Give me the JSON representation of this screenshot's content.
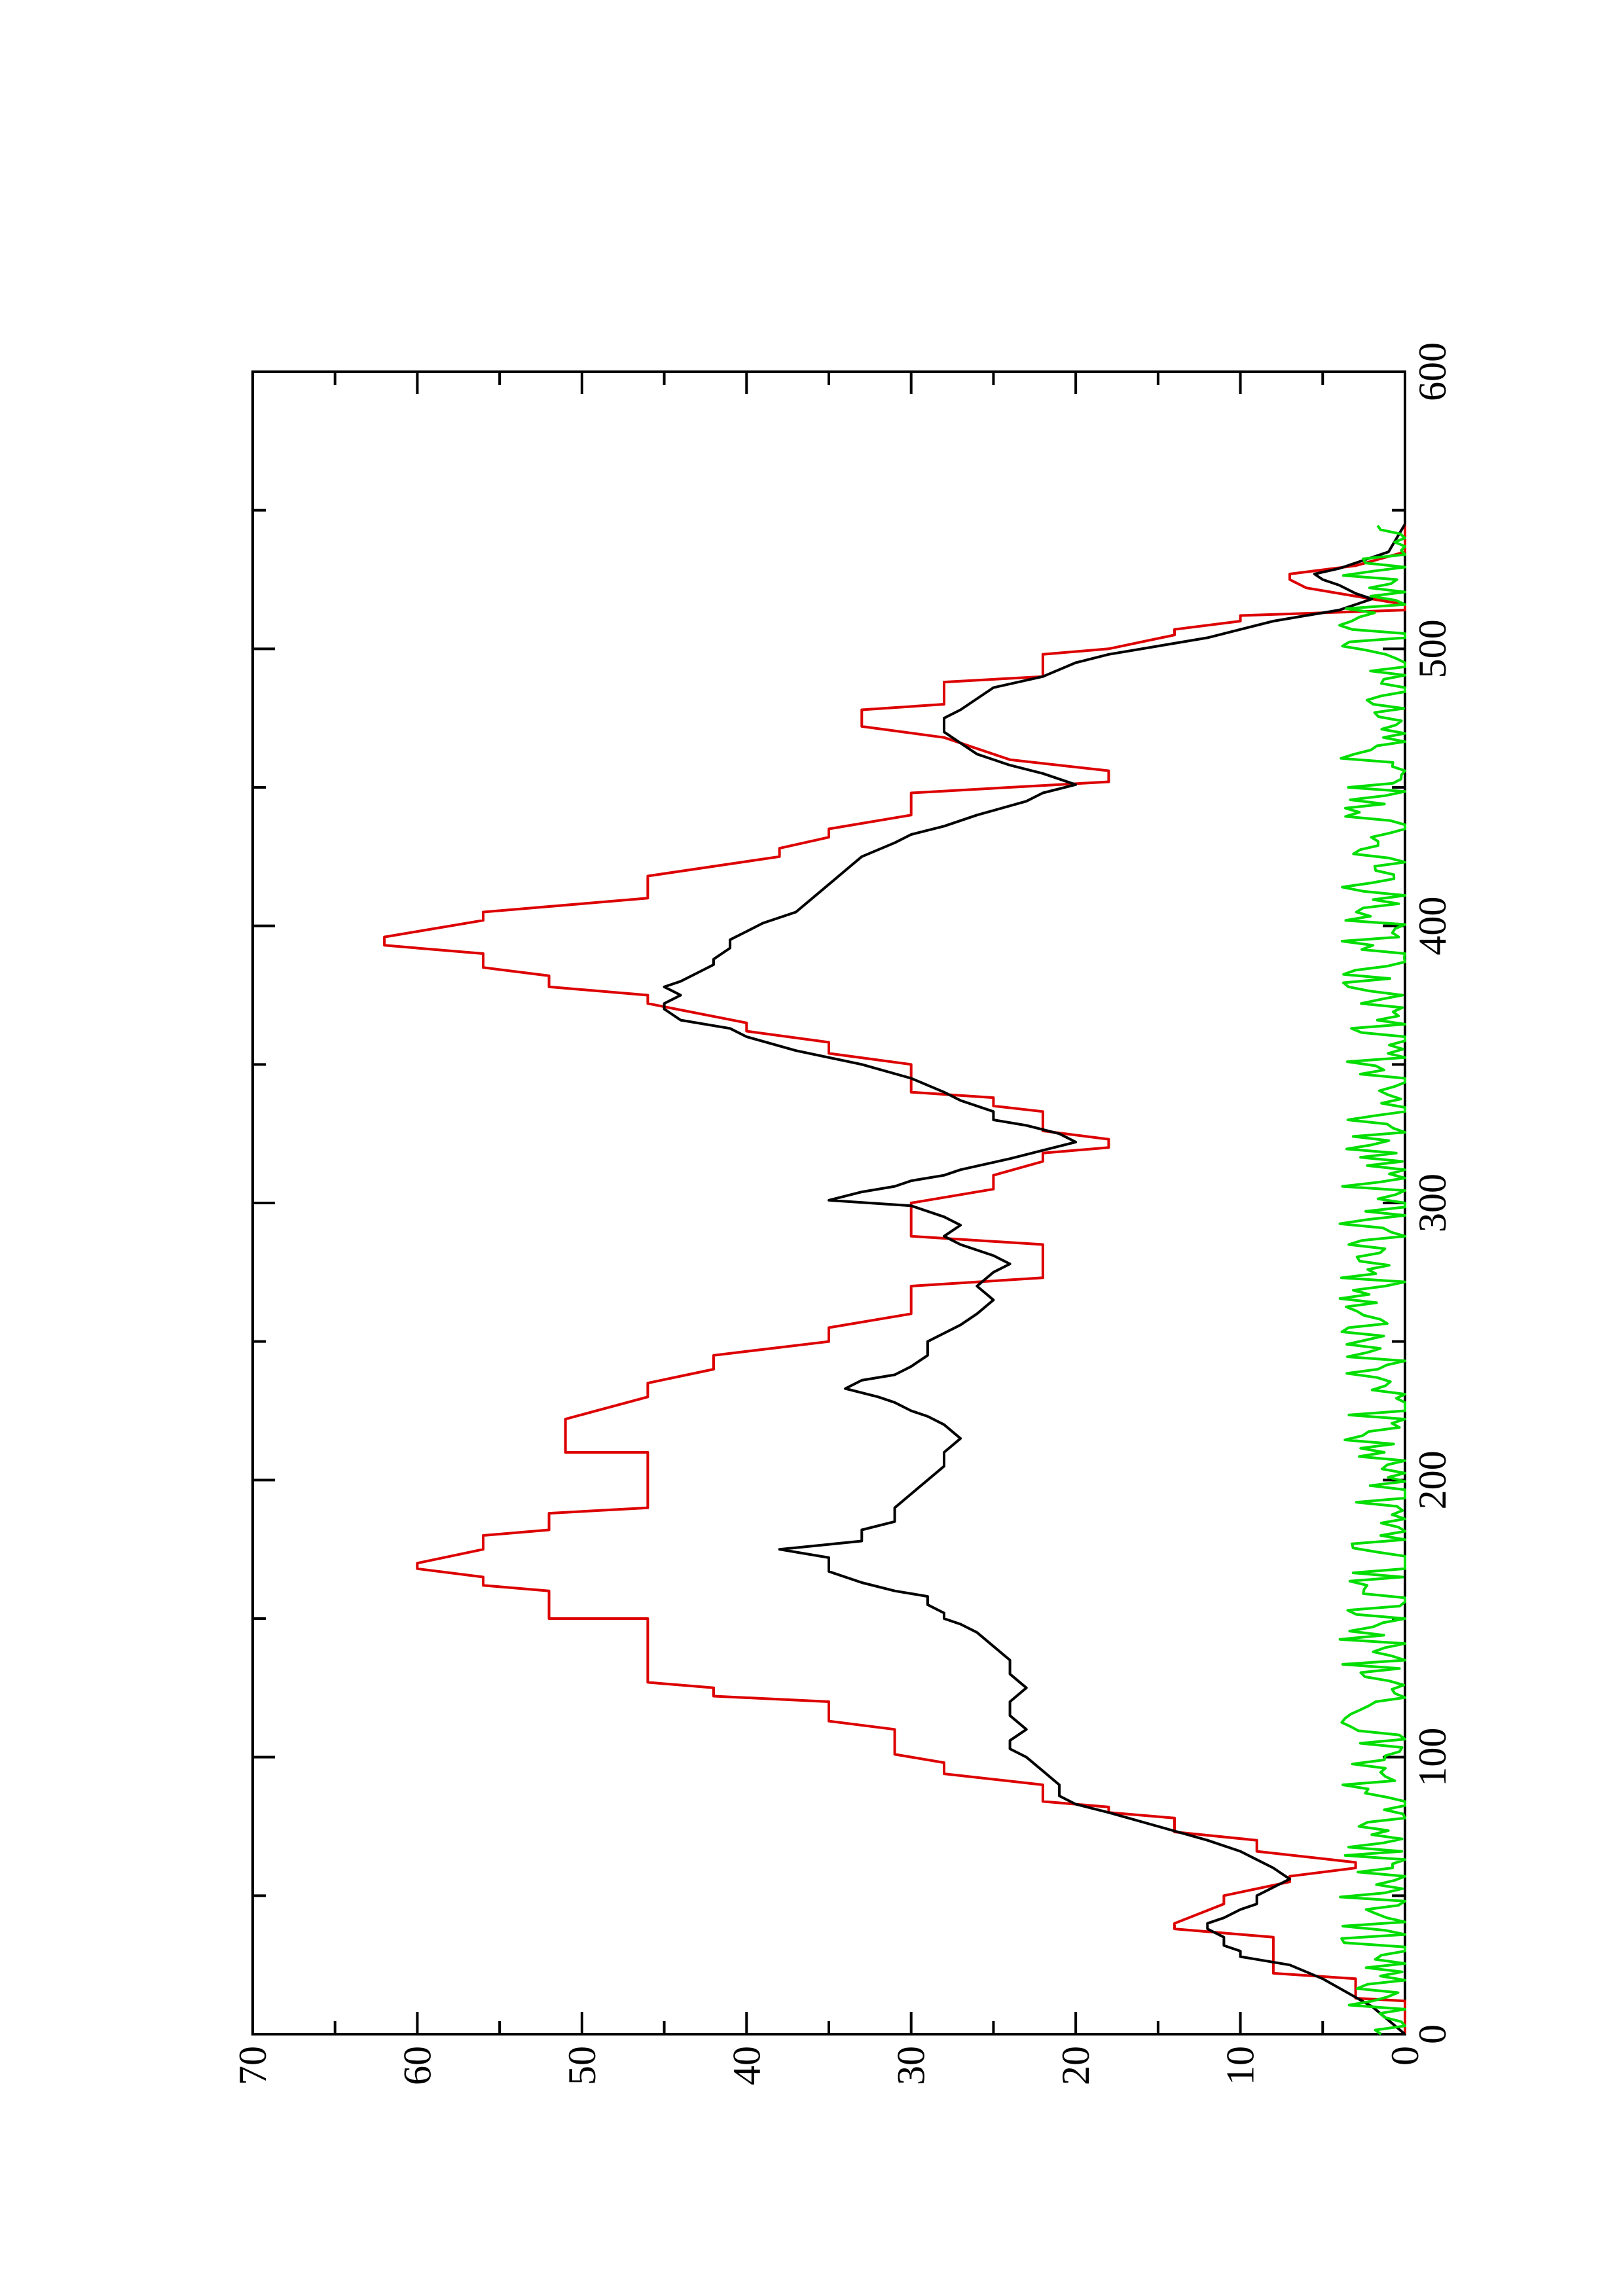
{
  "chart_data": {
    "type": "line",
    "title": "",
    "xlabel": "",
    "ylabel": "",
    "orientation": "rotated-90-counterclockwise",
    "xlim": [
      0,
      600
    ],
    "ylim": [
      0,
      70
    ],
    "grid": false,
    "legend": "none",
    "x_ticks": [
      0,
      100,
      200,
      300,
      400,
      500,
      600
    ],
    "y_ticks": [
      0,
      10,
      20,
      30,
      40,
      50,
      60,
      70
    ],
    "x_tick_labels": [
      "0",
      "100",
      "200",
      "300",
      "400",
      "500",
      "600"
    ],
    "y_tick_labels": [
      "0",
      "10",
      "20",
      "30",
      "40",
      "50",
      "60",
      "70"
    ],
    "series": [
      {
        "color": "#dd0000",
        "style": "step",
        "points": [
          [
            0,
            0
          ],
          [
            12,
            0
          ],
          [
            13,
            3
          ],
          [
            20,
            3
          ],
          [
            22,
            8
          ],
          [
            35,
            8
          ],
          [
            38,
            14
          ],
          [
            40,
            14
          ],
          [
            47,
            11
          ],
          [
            50,
            11
          ],
          [
            55,
            7
          ],
          [
            57,
            7
          ],
          [
            60,
            3
          ],
          [
            62,
            3
          ],
          [
            66,
            9
          ],
          [
            70,
            9
          ],
          [
            73,
            14
          ],
          [
            78,
            14
          ],
          [
            80,
            18
          ],
          [
            82,
            18
          ],
          [
            84,
            22
          ],
          [
            90,
            22
          ],
          [
            94,
            28
          ],
          [
            98,
            28
          ],
          [
            101,
            31
          ],
          [
            110,
            31
          ],
          [
            113,
            35
          ],
          [
            120,
            35
          ],
          [
            122,
            42
          ],
          [
            125,
            42
          ],
          [
            127,
            46
          ],
          [
            150,
            46
          ],
          [
            150,
            52
          ],
          [
            160,
            52
          ],
          [
            162,
            56
          ],
          [
            165,
            56
          ],
          [
            168,
            60
          ],
          [
            170,
            60
          ],
          [
            175,
            56
          ],
          [
            180,
            56
          ],
          [
            182,
            52
          ],
          [
            188,
            52
          ],
          [
            190,
            46
          ],
          [
            210,
            46
          ],
          [
            210,
            51
          ],
          [
            222,
            51
          ],
          [
            230,
            46
          ],
          [
            235,
            46
          ],
          [
            240,
            42
          ],
          [
            245,
            42
          ],
          [
            250,
            35
          ],
          [
            255,
            35
          ],
          [
            260,
            30
          ],
          [
            270,
            30
          ],
          [
            273,
            22
          ],
          [
            280,
            22
          ],
          [
            282,
            22
          ],
          [
            285,
            22
          ],
          [
            288,
            30
          ],
          [
            292,
            30
          ],
          [
            298,
            30
          ],
          [
            300,
            30
          ],
          [
            305,
            25
          ],
          [
            310,
            25
          ],
          [
            315,
            22
          ],
          [
            318,
            22
          ],
          [
            320,
            18
          ],
          [
            323,
            18
          ],
          [
            326,
            22
          ],
          [
            333,
            22
          ],
          [
            335,
            25
          ],
          [
            338,
            25
          ],
          [
            340,
            30
          ],
          [
            350,
            30
          ],
          [
            354,
            35
          ],
          [
            358,
            35
          ],
          [
            362,
            40
          ],
          [
            365,
            40
          ],
          [
            372,
            46
          ],
          [
            375,
            46
          ],
          [
            378,
            52
          ],
          [
            382,
            52
          ],
          [
            385,
            56
          ],
          [
            390,
            56
          ],
          [
            393,
            62
          ],
          [
            396,
            62
          ],
          [
            402,
            56
          ],
          [
            405,
            56
          ],
          [
            410,
            46
          ],
          [
            418,
            46
          ],
          [
            425,
            38
          ],
          [
            428,
            38
          ],
          [
            432,
            35
          ],
          [
            435,
            35
          ],
          [
            440,
            30
          ],
          [
            448,
            30
          ],
          [
            452,
            18
          ],
          [
            456,
            18
          ],
          [
            460,
            24
          ],
          [
            468,
            28
          ],
          [
            472,
            33
          ],
          [
            478,
            33
          ],
          [
            480,
            28
          ],
          [
            488,
            28
          ],
          [
            490,
            22
          ],
          [
            498,
            22
          ],
          [
            500,
            18
          ],
          [
            505,
            14
          ],
          [
            507,
            14
          ],
          [
            510,
            10
          ],
          [
            512,
            10
          ],
          [
            514,
            0
          ],
          [
            516,
            0
          ],
          [
            522,
            6
          ],
          [
            525,
            7
          ],
          [
            527,
            7
          ],
          [
            530,
            3
          ],
          [
            535,
            0
          ],
          [
            545,
            0
          ]
        ]
      },
      {
        "color": "#000000",
        "style": "line",
        "points": [
          [
            0,
            0
          ],
          [
            5,
            1
          ],
          [
            10,
            2
          ],
          [
            15,
            3.5
          ],
          [
            20,
            5
          ],
          [
            25,
            7
          ],
          [
            28,
            10
          ],
          [
            30,
            10
          ],
          [
            32,
            11
          ],
          [
            35,
            11
          ],
          [
            38,
            12
          ],
          [
            40,
            12
          ],
          [
            42,
            11
          ],
          [
            45,
            10
          ],
          [
            47,
            9
          ],
          [
            50,
            9
          ],
          [
            53,
            8
          ],
          [
            56,
            7
          ],
          [
            58,
            7.5
          ],
          [
            60,
            8
          ],
          [
            63,
            9
          ],
          [
            66,
            10
          ],
          [
            70,
            12
          ],
          [
            75,
            15
          ],
          [
            80,
            18
          ],
          [
            83,
            20
          ],
          [
            86,
            21
          ],
          [
            90,
            21
          ],
          [
            95,
            22
          ],
          [
            100,
            23
          ],
          [
            103,
            24
          ],
          [
            106,
            24
          ],
          [
            110,
            23
          ],
          [
            115,
            24
          ],
          [
            120,
            24
          ],
          [
            125,
            23
          ],
          [
            130,
            24
          ],
          [
            135,
            24
          ],
          [
            140,
            25
          ],
          [
            145,
            26
          ],
          [
            148,
            27
          ],
          [
            150,
            28
          ],
          [
            152,
            28
          ],
          [
            155,
            29
          ],
          [
            158,
            29
          ],
          [
            160,
            31
          ],
          [
            163,
            33
          ],
          [
            167,
            35
          ],
          [
            172,
            35
          ],
          [
            175,
            38
          ],
          [
            178,
            33
          ],
          [
            182,
            33
          ],
          [
            185,
            31
          ],
          [
            190,
            31
          ],
          [
            195,
            30
          ],
          [
            200,
            29
          ],
          [
            205,
            28
          ],
          [
            210,
            28
          ],
          [
            215,
            27
          ],
          [
            220,
            28
          ],
          [
            223,
            29
          ],
          [
            225,
            30
          ],
          [
            228,
            31
          ],
          [
            230,
            32
          ],
          [
            233,
            34
          ],
          [
            236,
            33
          ],
          [
            238,
            31
          ],
          [
            241,
            30
          ],
          [
            245,
            29
          ],
          [
            250,
            29
          ],
          [
            253,
            28
          ],
          [
            256,
            27
          ],
          [
            260,
            26
          ],
          [
            265,
            25
          ],
          [
            270,
            26
          ],
          [
            275,
            25
          ],
          [
            278,
            24
          ],
          [
            281,
            25
          ],
          [
            285,
            27
          ],
          [
            288,
            28
          ],
          [
            292,
            27
          ],
          [
            295,
            28
          ],
          [
            299,
            30
          ],
          [
            301,
            35
          ],
          [
            304,
            33
          ],
          [
            306,
            31
          ],
          [
            308,
            30
          ],
          [
            310,
            28
          ],
          [
            312,
            27
          ],
          [
            316,
            24
          ],
          [
            319,
            22
          ],
          [
            322,
            20
          ],
          [
            325,
            21
          ],
          [
            328,
            23
          ],
          [
            330,
            25
          ],
          [
            333,
            25
          ],
          [
            337,
            27
          ],
          [
            340,
            28
          ],
          [
            345,
            30
          ],
          [
            350,
            33
          ],
          [
            355,
            37
          ],
          [
            360,
            40
          ],
          [
            363,
            41
          ],
          [
            366,
            44
          ],
          [
            370,
            45
          ],
          [
            372,
            45
          ],
          [
            375,
            44
          ],
          [
            378,
            45
          ],
          [
            380,
            44
          ],
          [
            383,
            43
          ],
          [
            386,
            42
          ],
          [
            388,
            42
          ],
          [
            392,
            41
          ],
          [
            395,
            41
          ],
          [
            398,
            40
          ],
          [
            401,
            39
          ],
          [
            405,
            37
          ],
          [
            410,
            36
          ],
          [
            415,
            35
          ],
          [
            420,
            34
          ],
          [
            425,
            33
          ],
          [
            430,
            31
          ],
          [
            433,
            30
          ],
          [
            436,
            28
          ],
          [
            440,
            26
          ],
          [
            445,
            23
          ],
          [
            448,
            22
          ],
          [
            451,
            20
          ],
          [
            455,
            22
          ],
          [
            458,
            24
          ],
          [
            462,
            26
          ],
          [
            466,
            27
          ],
          [
            470,
            28
          ],
          [
            475,
            28
          ],
          [
            478,
            27
          ],
          [
            482,
            26
          ],
          [
            486,
            25
          ],
          [
            490,
            22
          ],
          [
            495,
            20
          ],
          [
            498,
            18
          ],
          [
            501,
            15
          ],
          [
            504,
            12
          ],
          [
            507,
            10
          ],
          [
            510,
            8
          ],
          [
            512,
            6
          ],
          [
            514,
            4
          ],
          [
            516,
            3
          ],
          [
            518,
            2
          ],
          [
            520,
            3
          ],
          [
            523,
            4
          ],
          [
            525,
            5
          ],
          [
            527,
            5.5
          ],
          [
            529,
            4
          ],
          [
            531,
            3
          ],
          [
            533,
            2
          ],
          [
            535,
            1
          ],
          [
            540,
            0.5
          ],
          [
            545,
            0
          ]
        ]
      },
      {
        "color": "#00dd00",
        "style": "line",
        "noise": true,
        "x_range": [
          0,
          545
        ],
        "mean": 1.5,
        "amplitude": 2.5
      }
    ]
  }
}
